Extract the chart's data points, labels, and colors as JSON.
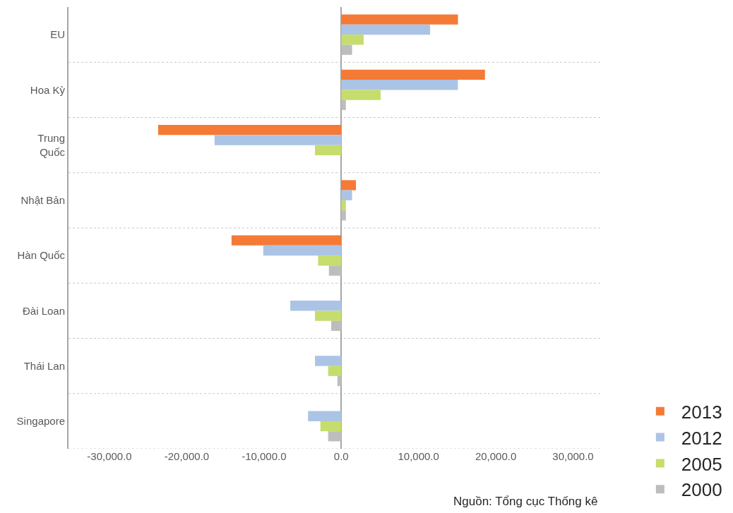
{
  "chart_data": {
    "type": "bar",
    "orientation": "horizontal",
    "categories": [
      "EU",
      "Hoa Kỳ",
      "Trung Quốc",
      "Nhật Bản",
      "Hàn Quốc",
      "Đài Loan",
      "Thái Lan",
      "Singapore"
    ],
    "series": [
      {
        "name": "2013",
        "color": "#f47a36",
        "values": [
          15100,
          18600,
          -23700,
          1900,
          -14200,
          null,
          null,
          null
        ]
      },
      {
        "name": "2012",
        "color": "#abc4e6",
        "values": [
          11500,
          15100,
          -16400,
          1400,
          -10100,
          -6600,
          -3400,
          -4300
        ]
      },
      {
        "name": "2005",
        "color": "#c5dd6c",
        "values": [
          2900,
          5100,
          -3400,
          600,
          -3000,
          -3400,
          -1700,
          -2700
        ]
      },
      {
        "name": "2000",
        "color": "#bdbdbe",
        "values": [
          1400,
          600,
          null,
          600,
          -1600,
          -1300,
          -500,
          -1700
        ]
      }
    ],
    "xlim": [
      -35300,
      33700
    ],
    "xticks": [
      {
        "value": -30000,
        "label": "-30,000.0"
      },
      {
        "value": -20000,
        "label": "-20,000.0"
      },
      {
        "value": -10000,
        "label": "-10,000.0"
      },
      {
        "value": 0,
        "label": "0.0"
      },
      {
        "value": 10000,
        "label": "10,000.0"
      },
      {
        "value": 20000,
        "label": "20,000.0"
      },
      {
        "value": 30000,
        "label": "30,000.0"
      }
    ],
    "grid": "y",
    "legend": "bottom right",
    "annotations": [
      "Nguồn: Tổng cục Thống kê"
    ]
  }
}
